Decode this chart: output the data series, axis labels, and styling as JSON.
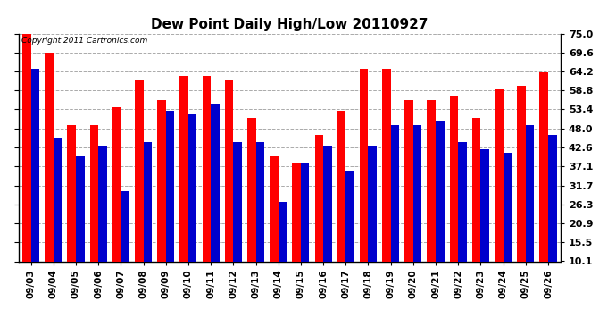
{
  "title": "Dew Point Daily High/Low 20110927",
  "copyright": "Copyright 2011 Cartronics.com",
  "dates": [
    "09/03",
    "09/04",
    "09/05",
    "09/06",
    "09/07",
    "09/08",
    "09/09",
    "09/10",
    "09/11",
    "09/12",
    "09/13",
    "09/14",
    "09/15",
    "09/16",
    "09/17",
    "09/18",
    "09/19",
    "09/20",
    "09/21",
    "09/22",
    "09/23",
    "09/24",
    "09/25",
    "09/26"
  ],
  "high": [
    75.0,
    69.6,
    49.0,
    49.0,
    54.0,
    62.0,
    56.0,
    63.0,
    63.0,
    62.0,
    51.0,
    40.0,
    38.0,
    46.0,
    53.0,
    65.0,
    65.0,
    56.0,
    56.0,
    57.0,
    51.0,
    59.0,
    60.0,
    64.0
  ],
  "low": [
    65.0,
    45.0,
    40.0,
    43.0,
    30.0,
    44.0,
    53.0,
    52.0,
    55.0,
    44.0,
    44.0,
    27.0,
    38.0,
    43.0,
    36.0,
    43.0,
    49.0,
    49.0,
    50.0,
    44.0,
    42.0,
    41.0,
    49.0,
    46.0
  ],
  "high_color": "#ff0000",
  "low_color": "#0000cc",
  "bg_color": "#ffffff",
  "grid_color": "#aaaaaa",
  "ytick_labels": [
    "75.0",
    "69.6",
    "64.2",
    "58.8",
    "53.4",
    "48.0",
    "42.6",
    "37.1",
    "31.7",
    "26.3",
    "20.9",
    "15.5",
    "10.1"
  ],
  "ytick_values": [
    75.0,
    69.6,
    64.2,
    58.8,
    53.4,
    48.0,
    42.6,
    37.1,
    31.7,
    26.3,
    20.9,
    15.5,
    10.1
  ],
  "ymin": 10.1,
  "ymax": 75.0,
  "bar_width": 0.38,
  "title_fontsize": 11,
  "tick_fontsize": 7.5,
  "ytick_fontsize": 8
}
